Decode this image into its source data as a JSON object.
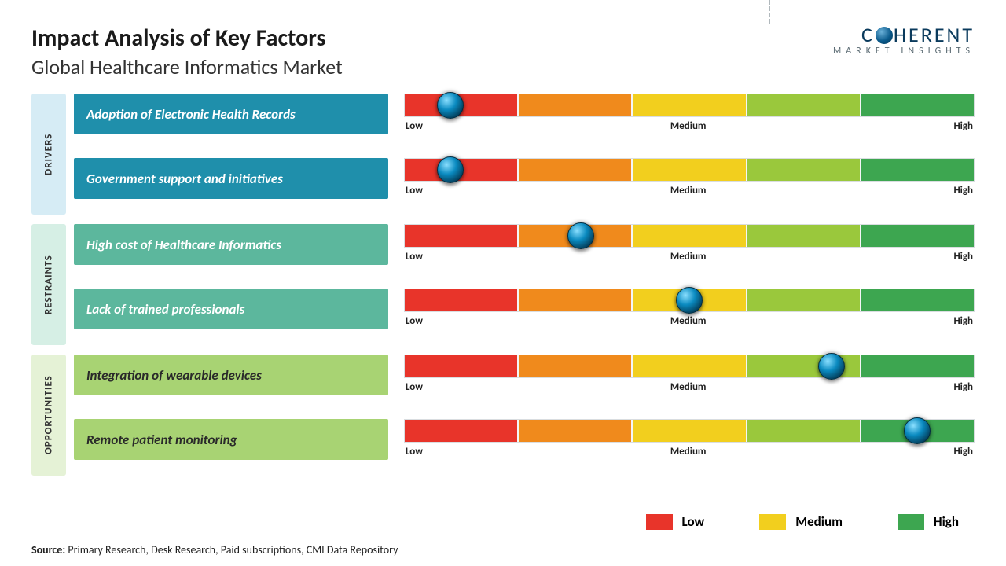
{
  "header": {
    "title": "Impact Analysis of Key Factors",
    "subtitle": "Global Healthcare Informatics Market"
  },
  "logo": {
    "text_pre": "C",
    "text_post": "HERENT",
    "subtext": "MARKET INSIGHTS",
    "color_primary": "#0a3a5c",
    "color_sub": "#5a6a72"
  },
  "scale": {
    "tick_low": "Low",
    "tick_medium": "Medium",
    "tick_high": "High",
    "segments": [
      "#e8342a",
      "#f08a1c",
      "#f2cf1e",
      "#9ac83c",
      "#3da650"
    ],
    "knob_gradient": [
      "#8adfff",
      "#0a8ac0",
      "#033a55"
    ]
  },
  "groups": [
    {
      "label": "DRIVERS",
      "vlabel_bg": "#d6ecf5",
      "factor_bg": "#1f8fab",
      "factor_text": "#ffffff",
      "items": [
        {
          "text": "Adoption of Electronic Health Records",
          "position_pct": 8
        },
        {
          "text": "Government support and initiatives",
          "position_pct": 8
        }
      ]
    },
    {
      "label": "RESTRAINTS",
      "vlabel_bg": "#d6efe5",
      "factor_bg": "#5cb79d",
      "factor_text": "#ffffff",
      "items": [
        {
          "text": "High cost of Healthcare Informatics",
          "position_pct": 31
        },
        {
          "text": "Lack of trained professionals",
          "position_pct": 50
        }
      ]
    },
    {
      "label": "OPPORTUNITIES",
      "vlabel_bg": "#e5f2d6",
      "factor_bg": "#a8d373",
      "factor_text": "#2a2a2a",
      "items": [
        {
          "text": "Integration of wearable devices",
          "position_pct": 75
        },
        {
          "text": "Remote patient monitoring",
          "position_pct": 90
        }
      ]
    }
  ],
  "legend": {
    "items": [
      {
        "label": "Low",
        "color": "#e8342a"
      },
      {
        "label": "Medium",
        "color": "#f2cf1e"
      },
      {
        "label": "High",
        "color": "#3da650"
      }
    ]
  },
  "source": {
    "prefix": "Source:",
    "text": "Primary Research, Desk Research, Paid subscriptions, CMI Data Repository"
  }
}
